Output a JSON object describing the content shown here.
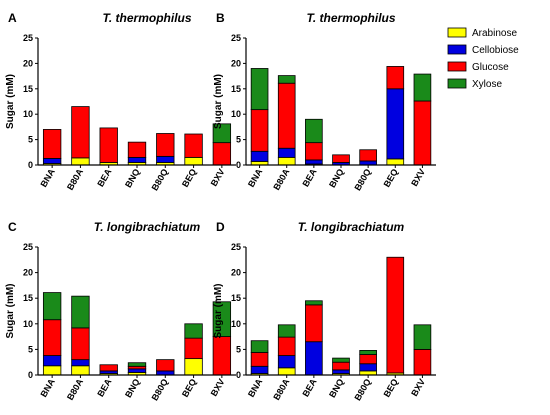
{
  "colors": {
    "Arabinose": "#ffff00",
    "Cellobiose": "#0000e0",
    "Glucose": "#ff0000",
    "Xylose": "#1a8a1a"
  },
  "legend": [
    "Arabinose",
    "Cellobiose",
    "Glucose",
    "Xylose"
  ],
  "chart_data": [
    {
      "type": "bar",
      "panel": "A",
      "title": "T. thermophilus",
      "ylabel": "Sugar (mM)",
      "ylim": [
        0,
        25
      ],
      "yticks": [
        0,
        5,
        10,
        15,
        20,
        25
      ],
      "stacked": true,
      "categories": [
        "BNA",
        "B80A",
        "BEA",
        "BNQ",
        "B80Q",
        "BEQ",
        "BXV"
      ],
      "series": [
        {
          "name": "Arabinose",
          "values": [
            0.3,
            1.4,
            0.5,
            0.5,
            0.5,
            1.5,
            0
          ]
        },
        {
          "name": "Cellobiose",
          "values": [
            1.0,
            0,
            0,
            1.0,
            1.2,
            0,
            0
          ]
        },
        {
          "name": "Glucose",
          "values": [
            5.7,
            10.1,
            6.8,
            3.0,
            4.5,
            4.6,
            4.4
          ]
        },
        {
          "name": "Xylose",
          "values": [
            0,
            0,
            0,
            0,
            0,
            0,
            3.7
          ]
        }
      ]
    },
    {
      "type": "bar",
      "panel": "B",
      "title": "T. thermophilus",
      "ylabel": "Sugar (mM)",
      "ylim": [
        0,
        25
      ],
      "yticks": [
        0,
        5,
        10,
        15,
        20,
        25
      ],
      "stacked": true,
      "categories": [
        "BNA",
        "B80A",
        "BEA",
        "BNQ",
        "B80Q",
        "BEQ",
        "BXV"
      ],
      "series": [
        {
          "name": "Arabinose",
          "values": [
            0.7,
            1.5,
            0.2,
            0,
            0,
            1.2,
            0
          ]
        },
        {
          "name": "Cellobiose",
          "values": [
            2.0,
            1.8,
            0.8,
            0.5,
            0.8,
            13.8,
            0
          ]
        },
        {
          "name": "Glucose",
          "values": [
            8.2,
            12.8,
            3.4,
            1.5,
            2.2,
            4.4,
            12.6
          ]
        },
        {
          "name": "Xylose",
          "values": [
            8.1,
            1.5,
            4.6,
            0,
            0,
            0,
            5.3
          ]
        }
      ]
    },
    {
      "type": "bar",
      "panel": "C",
      "title": "T. longibrachiatum",
      "ylabel": "Sugar (mM)",
      "ylim": [
        0,
        25
      ],
      "yticks": [
        0,
        5,
        10,
        15,
        20,
        25
      ],
      "stacked": true,
      "categories": [
        "BNA",
        "B80A",
        "BEA",
        "BNQ",
        "B80Q",
        "BEQ",
        "BXV"
      ],
      "series": [
        {
          "name": "Arabinose",
          "values": [
            1.8,
            1.8,
            0.3,
            0.5,
            0,
            3.2,
            0
          ]
        },
        {
          "name": "Cellobiose",
          "values": [
            2.0,
            1.2,
            0.5,
            0.7,
            0.8,
            0,
            0
          ]
        },
        {
          "name": "Glucose",
          "values": [
            7.0,
            6.2,
            1.2,
            0.5,
            2.2,
            4.0,
            7.5
          ]
        },
        {
          "name": "Xylose",
          "values": [
            5.3,
            6.2,
            0,
            0.7,
            0,
            2.8,
            6.8
          ]
        }
      ]
    },
    {
      "type": "bar",
      "panel": "D",
      "title": "T. longibrachiatum",
      "ylabel": "Sugar (mM)",
      "ylim": [
        0,
        25
      ],
      "yticks": [
        0,
        5,
        10,
        15,
        20,
        25
      ],
      "stacked": true,
      "categories": [
        "BNA",
        "B80A",
        "BEA",
        "BNQ",
        "B80Q",
        "BEQ",
        "BXV"
      ],
      "series": [
        {
          "name": "Arabinose",
          "values": [
            0.3,
            1.4,
            0,
            0.3,
            0.8,
            0.4,
            0
          ]
        },
        {
          "name": "Cellobiose",
          "values": [
            1.4,
            2.4,
            6.5,
            0.7,
            1.4,
            0,
            0
          ]
        },
        {
          "name": "Glucose",
          "values": [
            2.7,
            3.6,
            7.2,
            1.5,
            1.8,
            22.6,
            5.0
          ]
        },
        {
          "name": "Xylose",
          "values": [
            2.3,
            2.4,
            0.8,
            0.8,
            0.8,
            0,
            4.8
          ]
        }
      ]
    }
  ]
}
